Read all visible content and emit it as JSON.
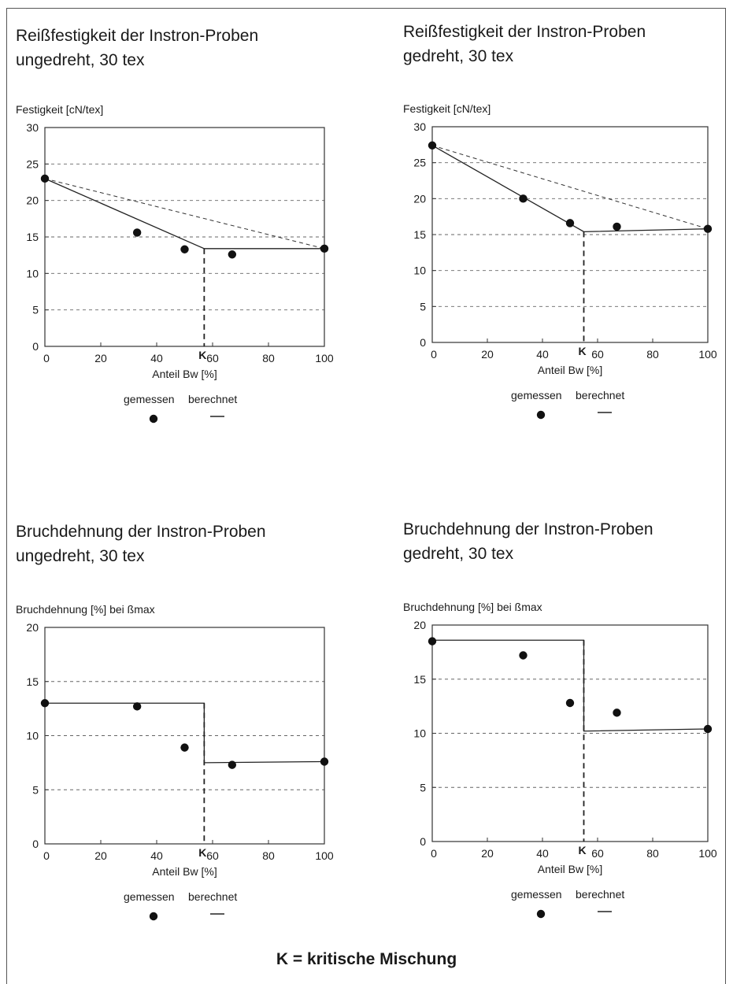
{
  "footer": "K = kritische Mischung",
  "legend": {
    "measured": "gemessen",
    "calculated": "berechnet"
  },
  "k_marker": "K",
  "chart_data": [
    {
      "type": "scatter",
      "title": "Reißfestigkeit der Instron-Proben\nungedreht, 30 tex",
      "ylabel": "Festigkeit [cN/tex]",
      "xlabel": "Anteil Bw [%]",
      "xlim": [
        0,
        100
      ],
      "ylim": [
        0,
        30
      ],
      "xticks": [
        0,
        20,
        40,
        60,
        80,
        100
      ],
      "yticks": [
        0,
        5,
        10,
        15,
        20,
        25,
        30
      ],
      "grid_y": [
        5,
        10,
        15,
        20,
        25
      ],
      "critical_mix": 57,
      "series": [
        {
          "name": "gemessen",
          "x": [
            0,
            33,
            50,
            67,
            100
          ],
          "y": [
            23,
            15.6,
            13.3,
            12.6,
            13.4
          ]
        },
        {
          "name": "berechnet",
          "x": [
            0,
            57,
            100
          ],
          "y": [
            23,
            13.4,
            13.4
          ]
        }
      ],
      "reference_line": {
        "x": [
          0,
          100
        ],
        "y": [
          23,
          13.4
        ]
      }
    },
    {
      "type": "scatter",
      "title": "Reißfestigkeit der Instron-Proben\ngedreht, 30 tex",
      "ylabel": "Festigkeit [cN/tex]",
      "xlabel": "Anteil Bw [%]",
      "xlim": [
        0,
        100
      ],
      "ylim": [
        0,
        30
      ],
      "xticks": [
        0,
        20,
        40,
        60,
        80,
        100
      ],
      "yticks": [
        0,
        5,
        10,
        15,
        20,
        25,
        30
      ],
      "grid_y": [
        5,
        10,
        15,
        20,
        25
      ],
      "critical_mix": 55,
      "series": [
        {
          "name": "gemessen",
          "x": [
            0,
            33,
            50,
            67,
            100
          ],
          "y": [
            27.4,
            20,
            16.6,
            16.1,
            15.8
          ]
        },
        {
          "name": "berechnet",
          "x": [
            0,
            55,
            100
          ],
          "y": [
            27.4,
            15.4,
            15.8
          ]
        }
      ],
      "reference_line": {
        "x": [
          0,
          100
        ],
        "y": [
          27.4,
          15.8
        ]
      }
    },
    {
      "type": "scatter",
      "title": "Bruchdehnung der Instron-Proben\nungedreht, 30 tex",
      "ylabel": "Bruchdehnung [%] bei ßmax",
      "xlabel": "Anteil Bw [%]",
      "xlim": [
        0,
        100
      ],
      "ylim": [
        0,
        20
      ],
      "xticks": [
        0,
        20,
        40,
        60,
        80,
        100
      ],
      "yticks": [
        0,
        5,
        10,
        15,
        20
      ],
      "grid_y": [
        5,
        10,
        15
      ],
      "critical_mix": 57,
      "series": [
        {
          "name": "gemessen",
          "x": [
            0,
            33,
            50,
            67,
            100
          ],
          "y": [
            13,
            12.7,
            8.9,
            7.3,
            7.6
          ]
        },
        {
          "name": "berechnet",
          "x": [
            0,
            57,
            57,
            100
          ],
          "y": [
            13,
            13,
            7.5,
            7.6
          ]
        }
      ]
    },
    {
      "type": "scatter",
      "title": "Bruchdehnung der Instron-Proben\ngedreht, 30 tex",
      "ylabel": "Bruchdehnung [%] bei ßmax",
      "xlabel": "Anteil Bw [%]",
      "xlim": [
        0,
        100
      ],
      "ylim": [
        0,
        20
      ],
      "xticks": [
        0,
        20,
        40,
        60,
        80,
        100
      ],
      "yticks": [
        0,
        5,
        10,
        15,
        20
      ],
      "grid_y": [
        5,
        10,
        15
      ],
      "critical_mix": 55,
      "series": [
        {
          "name": "gemessen",
          "x": [
            0,
            33,
            50,
            67,
            100
          ],
          "y": [
            18.5,
            17.2,
            12.8,
            11.9,
            10.4
          ]
        },
        {
          "name": "berechnet",
          "x": [
            0,
            55,
            55,
            100
          ],
          "y": [
            18.6,
            18.6,
            10.2,
            10.4
          ]
        }
      ]
    }
  ]
}
